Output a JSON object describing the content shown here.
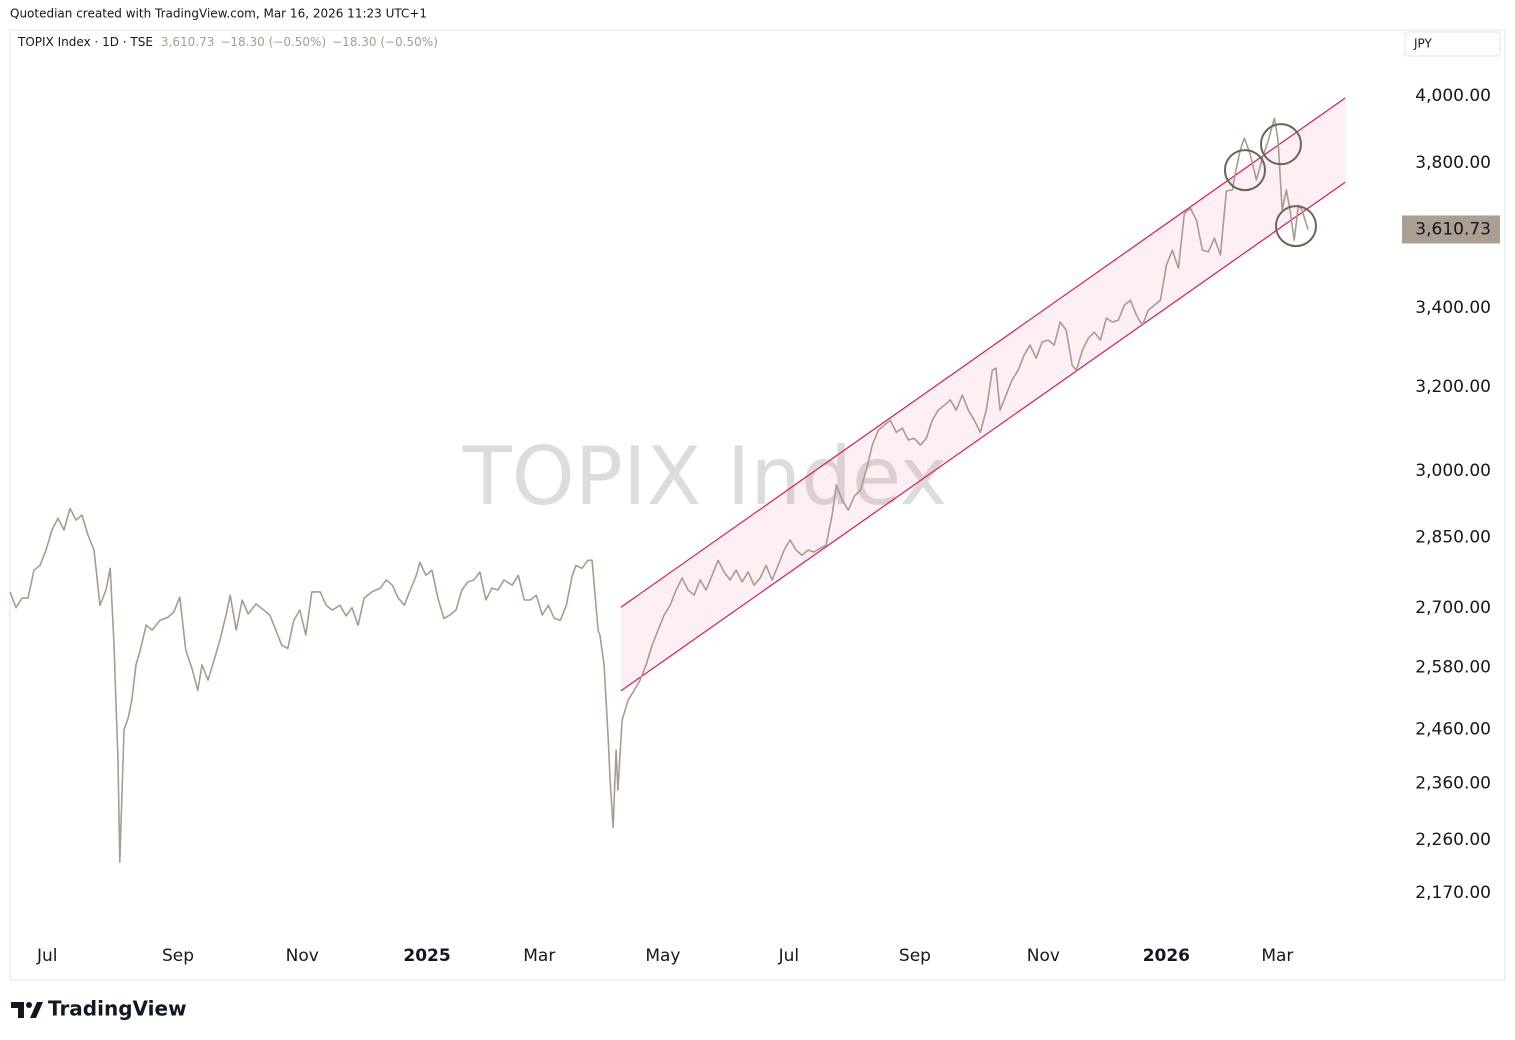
{
  "header": {
    "credit": "Quotedian created with TradingView.com, Mar 16, 2026 11:23 UTC+1"
  },
  "footer": {
    "brand": "TradingView"
  },
  "chart_data": {
    "type": "line",
    "symbol": "TOPIX Index · 1D · TSE",
    "currency": "JPY",
    "last_price": {
      "value": 3610.73,
      "label": "3,610.73"
    },
    "change": "−18.30 (−0.50%)",
    "change_2": "−18.30 (−0.50%)",
    "log_scale": true,
    "grid": false,
    "xlim": [
      0,
      231.8
    ],
    "ylim": [
      2093,
      4208
    ],
    "xticks": [
      {
        "value": 6.2,
        "label": "Jul"
      },
      {
        "value": 28,
        "label": "Sep"
      },
      {
        "value": 48.7,
        "label": "Nov"
      },
      {
        "value": 69.5,
        "label": "2025",
        "bold": true
      },
      {
        "value": 88.2,
        "label": "Mar"
      },
      {
        "value": 108.8,
        "label": "May"
      },
      {
        "value": 129.8,
        "label": "Jul"
      },
      {
        "value": 150.8,
        "label": "Sep"
      },
      {
        "value": 172.2,
        "label": "Nov"
      },
      {
        "value": 192.7,
        "label": "2026",
        "bold": true
      },
      {
        "value": 211.2,
        "label": "Mar"
      }
    ],
    "yticks": [
      {
        "value": 4000,
        "label": "4,000.00"
      },
      {
        "value": 3800,
        "label": "3,800.00"
      },
      {
        "value": 3400,
        "label": "3,400.00"
      },
      {
        "value": 3200,
        "label": "3,200.00"
      },
      {
        "value": 3000,
        "label": "3,000.00"
      },
      {
        "value": 2850,
        "label": "2,850.00"
      },
      {
        "value": 2700,
        "label": "2,700.00"
      },
      {
        "value": 2580,
        "label": "2,580.00"
      },
      {
        "value": 2460,
        "label": "2,460.00"
      },
      {
        "value": 2360,
        "label": "2,360.00"
      },
      {
        "value": 2260,
        "label": "2,260.00"
      },
      {
        "value": 2170,
        "label": "2,170.00"
      }
    ],
    "x": [
      0,
      1,
      2,
      3,
      4,
      5,
      6,
      7,
      8,
      9,
      10,
      11,
      12,
      13,
      14,
      15,
      16,
      16.7,
      17.3,
      18,
      18.3,
      19,
      19.7,
      20.3,
      21,
      21.7,
      22.7,
      23.7,
      25,
      26.3,
      27.3,
      28.3,
      29.3,
      30.3,
      31.3,
      32,
      33,
      34,
      35,
      36,
      36.7,
      37.7,
      38.7,
      39.7,
      41,
      42.3,
      43.3,
      44.3,
      45.3,
      46.3,
      47.3,
      48.3,
      49.3,
      50.3,
      51.7,
      52.7,
      53.7,
      55,
      56,
      57,
      58,
      59,
      60.3,
      61.7,
      62.7,
      63.7,
      64.7,
      65.7,
      66.7,
      67.7,
      68.3,
      69.3,
      70.3,
      71.3,
      72.3,
      73.3,
      74.3,
      75.3,
      76.3,
      77.3,
      78.3,
      79.3,
      80.3,
      81.3,
      82.3,
      83.7,
      84.7,
      85.7,
      86.7,
      87.7,
      88.7,
      89.7,
      90.7,
      91.7,
      92.7,
      93.7,
      94.3,
      95.3,
      96.3,
      97,
      98,
      98.3,
      99,
      99.7,
      100,
      100.5,
      101,
      101.3,
      102,
      103,
      104,
      105,
      106,
      107,
      108,
      109,
      110,
      111,
      112,
      113,
      114,
      115,
      116,
      117,
      118,
      119,
      120,
      121,
      122,
      123,
      124,
      125,
      126,
      127,
      128,
      129,
      130,
      131,
      132,
      133,
      134,
      135,
      136,
      137,
      137.7,
      138.7,
      139.7,
      140.7,
      141.7,
      142.7,
      143.7,
      144.7,
      145.7,
      146.7,
      147.7,
      148.7,
      149.7,
      150.7,
      151.7,
      152.7,
      153.7,
      154.7,
      155.7,
      156.7,
      157.7,
      158.7,
      159.7,
      160.7,
      161.7,
      162.7,
      163.7,
      164.3,
      165,
      166,
      167,
      168,
      169,
      170,
      171,
      172,
      173,
      174,
      175,
      176,
      177,
      177.7,
      178.7,
      179.7,
      180.7,
      181.7,
      182.7,
      183.7,
      184.7,
      185.7,
      186.7,
      187.7,
      188.7,
      189.7,
      190.7,
      191.7,
      192.7,
      193.7,
      194.7,
      195.7,
      196.7,
      197.7,
      198.7,
      199.7,
      200.7,
      201.7,
      202.7,
      203.7,
      204.3,
      205,
      205.7,
      206.7,
      207.7,
      208.7,
      209.7,
      210.7,
      211.3,
      212,
      212.7,
      213.3,
      214,
      214.7,
      215.3,
      216.3
    ],
    "series": [
      {
        "name": "TOPIX Index",
        "color": "#a89c90",
        "values": [
          2734,
          2701,
          2721,
          2721,
          2780,
          2790,
          2823,
          2867,
          2893,
          2867,
          2915,
          2889,
          2900,
          2856,
          2823,
          2706,
          2738,
          2784,
          2635,
          2403,
          2222,
          2459,
          2482,
          2516,
          2585,
          2614,
          2665,
          2655,
          2675,
          2681,
          2692,
          2723,
          2614,
          2579,
          2535,
          2585,
          2555,
          2594,
          2635,
          2686,
          2727,
          2655,
          2717,
          2688,
          2709,
          2696,
          2686,
          2655,
          2624,
          2618,
          2675,
          2696,
          2645,
          2734,
          2734,
          2706,
          2696,
          2706,
          2684,
          2701,
          2665,
          2721,
          2734,
          2742,
          2759,
          2748,
          2721,
          2706,
          2738,
          2769,
          2797,
          2769,
          2780,
          2721,
          2679,
          2686,
          2696,
          2738,
          2755,
          2759,
          2776,
          2717,
          2742,
          2738,
          2759,
          2748,
          2769,
          2717,
          2717,
          2727,
          2686,
          2706,
          2679,
          2675,
          2706,
          2769,
          2790,
          2784,
          2801,
          2801,
          2655,
          2645,
          2585,
          2440,
          2366,
          2282,
          2421,
          2348,
          2478,
          2516,
          2535,
          2555,
          2585,
          2624,
          2655,
          2686,
          2706,
          2738,
          2763,
          2738,
          2727,
          2759,
          2738,
          2769,
          2801,
          2776,
          2759,
          2780,
          2755,
          2776,
          2748,
          2763,
          2790,
          2759,
          2790,
          2823,
          2845,
          2823,
          2812,
          2823,
          2819,
          2827,
          2834,
          2900,
          2968,
          2933,
          2911,
          2942,
          2956,
          3002,
          3060,
          3095,
          3107,
          3119,
          3090,
          3100,
          3072,
          3076,
          3060,
          3076,
          3119,
          3143,
          3155,
          3168,
          3143,
          3180,
          3143,
          3119,
          3090,
          3143,
          3241,
          3246,
          3143,
          3180,
          3217,
          3241,
          3279,
          3304,
          3271,
          3312,
          3317,
          3304,
          3363,
          3342,
          3253,
          3241,
          3291,
          3322,
          3337,
          3317,
          3373,
          3363,
          3368,
          3407,
          3420,
          3381,
          3355,
          3394,
          3407,
          3420,
          3513,
          3554,
          3505,
          3656,
          3670,
          3637,
          3554,
          3549,
          3587,
          3541,
          3719,
          3722,
          3779,
          3838,
          3873,
          3823,
          3750,
          3814,
          3867,
          3933,
          3867,
          3665,
          3722,
          3665,
          3581,
          3679,
          3665,
          3610.73
        ]
      }
    ],
    "channel": {
      "x": [
        101.8,
        222.5
      ],
      "upper": [
        2702,
        3994
      ],
      "lower": [
        2534,
        3744
      ],
      "color": "#d81b60",
      "fill": "rgba(233,30,99,0.07)"
    },
    "circles": [
      {
        "x": 205.8,
        "y": 3779
      },
      {
        "x": 211.8,
        "y": 3855
      },
      {
        "x": 214.3,
        "y": 3620
      }
    ],
    "circle_color": "#6d6259",
    "price_box_color": "#ab9f94"
  }
}
